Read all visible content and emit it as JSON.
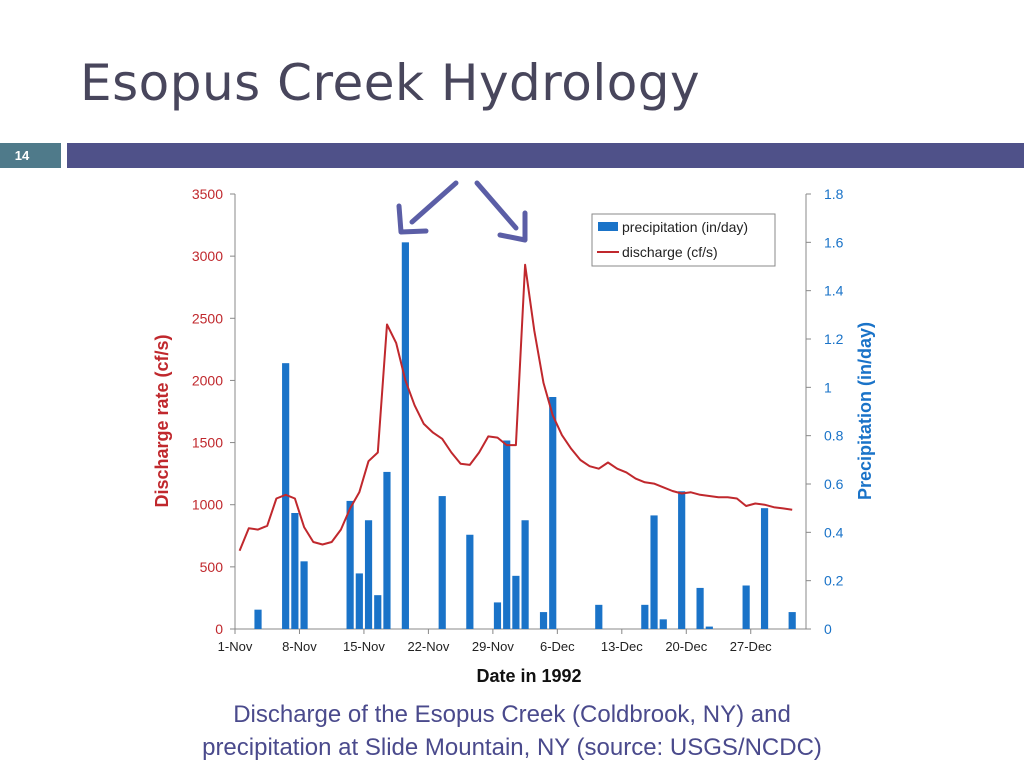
{
  "slide": {
    "title": "Esopus Creek Hydrology",
    "number": "14",
    "caption_line1": "Discharge of the Esopus Creek (Coldbrook, NY) and",
    "caption_line2": "precipitation at Slide Mountain, NY (source: USGS/NCDC)",
    "colors": {
      "title": "#48465c",
      "bar": "#4f5189",
      "number_box": "#4f7a8a",
      "caption": "#4a4a8c",
      "arrow": "#5b5ea6"
    }
  },
  "chart_data": {
    "type": "bar+line",
    "xlabel": "Date in 1992",
    "ylabel_left": "Discharge rate (cf/s)",
    "ylabel_right": "Precipitation (in/day)",
    "x_ticks": [
      "1-Nov",
      "8-Nov",
      "15-Nov",
      "22-Nov",
      "29-Nov",
      "6-Dec",
      "13-Dec",
      "20-Dec",
      "27-Dec"
    ],
    "y_left_ticks": [
      "0",
      "500",
      "1000",
      "1500",
      "2000",
      "2500",
      "3000",
      "3500"
    ],
    "y_right_ticks": [
      "0",
      "0.2",
      "0.4",
      "0.6",
      "0.8",
      "1",
      "1.2",
      "1.4",
      "1.6",
      "1.8"
    ],
    "ylim_left": [
      0,
      3500
    ],
    "ylim_right": [
      0,
      1.8
    ],
    "legend_position": "top-right",
    "series": [
      {
        "name": "precipitation (in/day)",
        "kind": "bar",
        "axis": "right",
        "color": "#1a73c8",
        "values": [
          0,
          0,
          0.08,
          0,
          0,
          1.1,
          0.48,
          0.28,
          0,
          0,
          0,
          0,
          0.53,
          0.23,
          0.45,
          0.14,
          0.65,
          0,
          1.6,
          0,
          0,
          0,
          0.55,
          0,
          0,
          0.39,
          0,
          0,
          0.11,
          0.78,
          0.22,
          0.45,
          0,
          0.07,
          0.96,
          0,
          0,
          0,
          0,
          0.1,
          0,
          0,
          0,
          0,
          0.1,
          0.47,
          0.04,
          0,
          0.57,
          0,
          0.17,
          0.01,
          0,
          0,
          0,
          0.18,
          0,
          0.5,
          0,
          0,
          0.07,
          0,
          0,
          0
        ]
      },
      {
        "name": "discharge (cf/s)",
        "kind": "line",
        "axis": "left",
        "color": "#c0282d",
        "values": [
          630,
          810,
          800,
          830,
          1050,
          1080,
          1050,
          820,
          700,
          680,
          700,
          800,
          970,
          1100,
          1350,
          1420,
          2450,
          2300,
          2000,
          1800,
          1650,
          1580,
          1530,
          1420,
          1330,
          1320,
          1420,
          1550,
          1540,
          1480,
          1480,
          2930,
          2400,
          1980,
          1720,
          1560,
          1450,
          1360,
          1310,
          1290,
          1340,
          1290,
          1260,
          1210,
          1180,
          1170,
          1140,
          1110,
          1090,
          1100,
          1080,
          1070,
          1060,
          1060,
          1050,
          990,
          1010,
          1000,
          980,
          970,
          960
        ]
      }
    ]
  }
}
